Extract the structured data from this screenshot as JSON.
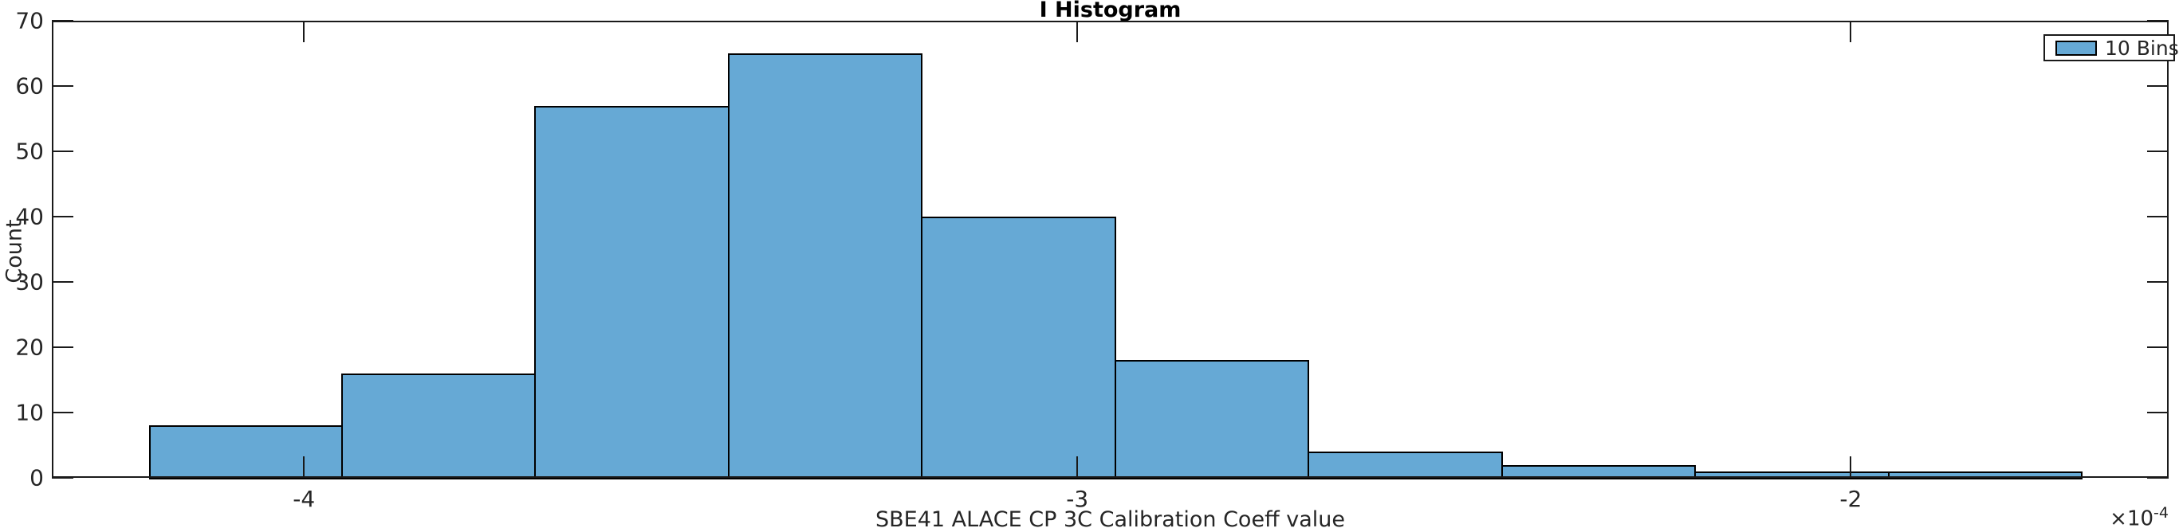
{
  "figure": {
    "title": "I Histogram",
    "xlabel": "SBE41 ALACE CP 3C Calibration Coeff value",
    "ylabel": "Count",
    "x_multiplier_base": "×10",
    "x_multiplier_exponent": "-4"
  },
  "legend": {
    "label": "10 Bins",
    "position": "northeast",
    "swatch_color": "#66A9D5"
  },
  "chart_data": {
    "type": "bar",
    "subtype": "histogram",
    "title": "I Histogram",
    "xlabel": "SBE41 ALACE CP 3C Calibration Coeff value",
    "ylabel": "Count",
    "x_unit_multiplier": 0.0001,
    "bin_edges_e4": [
      -4.2,
      -3.95,
      -3.7,
      -3.45,
      -3.2,
      -2.95,
      -2.7,
      -2.45,
      -2.2,
      -1.95,
      -1.7
    ],
    "counts": [
      8,
      16,
      57,
      65,
      40,
      18,
      4,
      2,
      1,
      1
    ],
    "total_count": 212,
    "num_bins": 10,
    "xlim_e4": [
      -4.326,
      -1.589
    ],
    "ylim": [
      0,
      70
    ],
    "x_ticks": [
      -4,
      -3,
      -2
    ],
    "x_tick_labels": [
      "-4",
      "-3",
      "-2"
    ],
    "y_ticks": [
      0,
      10,
      20,
      30,
      40,
      50,
      60,
      70
    ],
    "y_tick_labels": [
      "0",
      "10",
      "20",
      "30",
      "40",
      "50",
      "60",
      "70"
    ],
    "grid": false,
    "box": true,
    "tick_direction": "in",
    "legend_entries": [
      "10 Bins"
    ],
    "legend_position": "northeast",
    "bar_fill_color": "#66A9D5",
    "bar_edge_color": "#000000",
    "axis_color": "#1a1a1a"
  }
}
